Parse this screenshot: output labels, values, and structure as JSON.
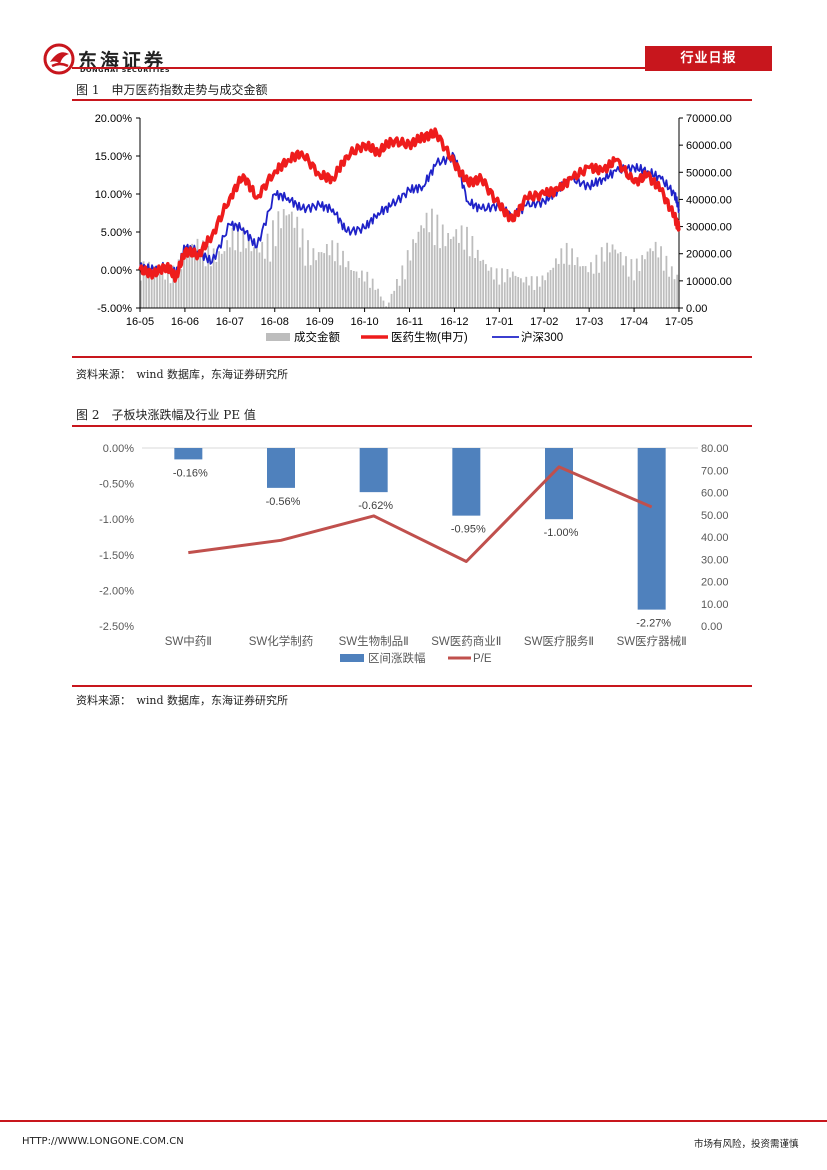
{
  "header": {
    "logo_text": "东海证券",
    "logo_sub": "DONGHAI SECURITIES",
    "tag": "行业日报"
  },
  "figure1": {
    "title": "图 1　申万医药指数走势与成交金额",
    "source": "资料来源：　wind 数据库，东海证券研究所"
  },
  "figure2": {
    "title": "图 2　子板块涨跌幅及行业 PE 值",
    "source": "资料来源：　wind 数据库，东海证券研究所"
  },
  "footer": {
    "url": "HTTP://WWW.LONGONE.COM.CN",
    "disclaimer": "市场有风险，投资需谨慎"
  },
  "colors": {
    "brand_red": "#c8161d",
    "bar_gray": "#bdbdbd",
    "line_red": "#ee1c1c",
    "line_blue": "#1f22c8",
    "bar_blue": "#4f81bd",
    "line_pe": "#c0504d"
  },
  "chart_data": [
    {
      "type": "line",
      "x_ticks": [
        "16-05",
        "16-06",
        "16-07",
        "16-08",
        "16-09",
        "16-10",
        "16-11",
        "16-12",
        "17-01",
        "17-02",
        "17-03",
        "17-04",
        "17-05"
      ],
      "y_left_ticks": [
        "20.00%",
        "15.00%",
        "10.00%",
        "5.00%",
        "0.00%",
        "-5.00%"
      ],
      "y_right_ticks": [
        "70000.00",
        "60000.00",
        "50000.00",
        "40000.00",
        "30000.00",
        "20000.00",
        "10000.00",
        "0.00"
      ],
      "ylim_left": [
        -5,
        20
      ],
      "ylim_right": [
        0,
        70000
      ],
      "series": [
        {
          "name": "成交金额",
          "kind": "bar",
          "axis": "right",
          "x": [
            0,
            0.5,
            1,
            1.5,
            2,
            2.5,
            3,
            3.5,
            4,
            4.5,
            5,
            5.5,
            6,
            6.5,
            7,
            7.5,
            8,
            8.5,
            9,
            9.5,
            10,
            10.5,
            11,
            11.5,
            12
          ],
          "values": [
            17000,
            13000,
            24000,
            22000,
            31000,
            23000,
            37000,
            32000,
            25000,
            20000,
            16000,
            0,
            27000,
            33000,
            36000,
            20000,
            17000,
            10000,
            15000,
            21000,
            20000,
            22000,
            21000,
            22000,
            15000
          ]
        },
        {
          "name": "医药生物(申万)",
          "kind": "line",
          "axis": "left",
          "x": [
            0,
            0.3,
            0.6,
            0.8,
            1,
            1.3,
            1.6,
            2,
            2.3,
            2.6,
            3,
            3.3,
            3.6,
            4,
            4.3,
            4.6,
            5,
            5.3,
            5.6,
            6,
            6.3,
            6.6,
            7,
            7.3,
            7.6,
            8,
            8.3,
            8.6,
            9,
            9.3,
            9.6,
            10,
            10.3,
            10.6,
            11,
            11.3,
            11.6,
            11.9,
            12
          ],
          "values": [
            0,
            -0.5,
            0.5,
            -1.0,
            2.5,
            2.0,
            4.5,
            9.5,
            12.5,
            9.5,
            13,
            14.5,
            15.5,
            12.5,
            12,
            15,
            16.5,
            15.5,
            17,
            16.5,
            17.5,
            18,
            14,
            11.5,
            12,
            8.5,
            6.5,
            9.5,
            10,
            10.5,
            12,
            13.5,
            13,
            14.5,
            11.5,
            12.5,
            10.5,
            7,
            5.5
          ]
        },
        {
          "name": "沪深300",
          "kind": "line",
          "axis": "left",
          "x": [
            0,
            0.3,
            0.6,
            0.8,
            1,
            1.3,
            1.6,
            2,
            2.3,
            2.6,
            3,
            3.3,
            3.6,
            4,
            4.3,
            4.6,
            5,
            5.3,
            5.6,
            6,
            6.3,
            6.6,
            7,
            7.3,
            7.6,
            8,
            8.3,
            8.6,
            9,
            9.3,
            9.6,
            10,
            10.3,
            10.6,
            11,
            11.3,
            11.6,
            11.9,
            12
          ],
          "values": [
            0.5,
            0,
            0.5,
            -0.5,
            3,
            2.5,
            1,
            6,
            5.5,
            3,
            10,
            9.5,
            8,
            8.5,
            8,
            5,
            5.5,
            7.5,
            8.5,
            10.5,
            11,
            14,
            15,
            9,
            8,
            8.5,
            7,
            8.5,
            9,
            10.5,
            12,
            11,
            12,
            13,
            13.5,
            13,
            12,
            10,
            8
          ]
        }
      ]
    },
    {
      "type": "bar",
      "categories": [
        "SW中药Ⅱ",
        "SW化学制药",
        "SW生物制品Ⅱ",
        "SW医药商业Ⅱ",
        "SW医疗服务Ⅱ",
        "SW医疗器械Ⅱ"
      ],
      "y_left_ticks": [
        "0.00%",
        "-0.50%",
        "-1.00%",
        "-1.50%",
        "-2.00%",
        "-2.50%"
      ],
      "y_right_ticks": [
        "80.00",
        "70.00",
        "60.00",
        "50.00",
        "40.00",
        "30.00",
        "20.00",
        "10.00",
        "0.00"
      ],
      "ylim_left": [
        -2.5,
        0
      ],
      "ylim_right": [
        0,
        80
      ],
      "series": [
        {
          "name": "区间涨跌幅",
          "kind": "bar",
          "axis": "left",
          "values": [
            -0.16,
            -0.56,
            -0.62,
            -0.95,
            -1.0,
            -2.27
          ],
          "labels": [
            "-0.16%",
            "-0.56%",
            "-0.62%",
            "-0.95%",
            "-1.00%",
            "-2.27%"
          ]
        },
        {
          "name": "P/E",
          "kind": "line",
          "axis": "right",
          "values": [
            33.0,
            38.5,
            49.5,
            29.0,
            71.5,
            53.5
          ]
        }
      ]
    }
  ]
}
